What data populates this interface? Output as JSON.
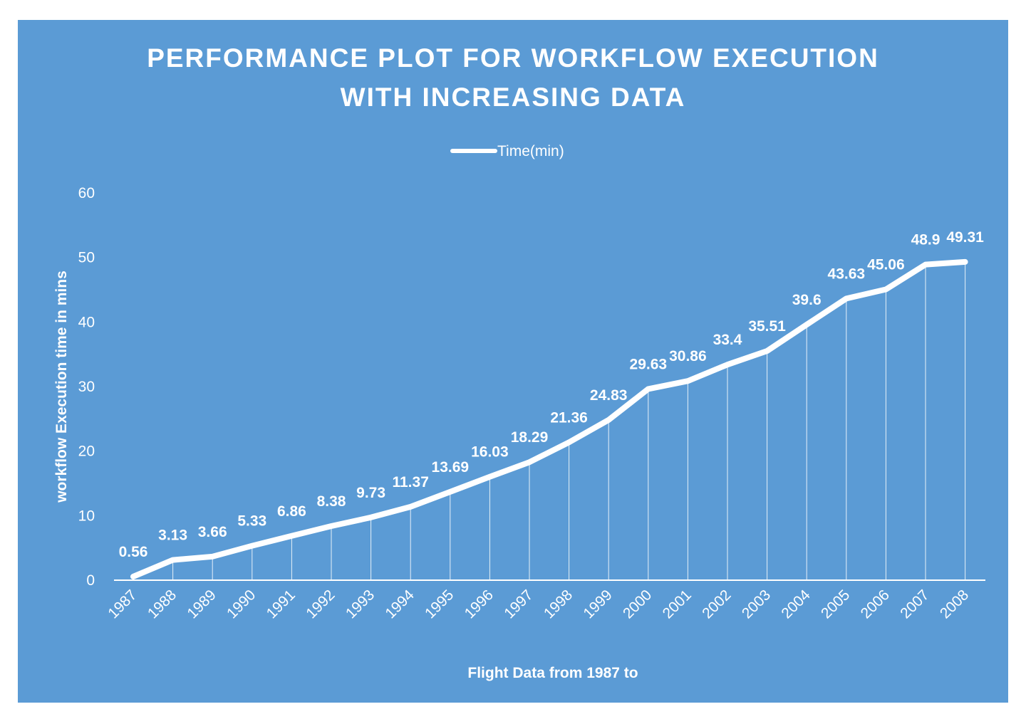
{
  "chart_data": {
    "type": "line",
    "title_lines": [
      "PERFORMANCE  PLOT FOR WORKFLOW  EXECUTION",
      "WITH INCREASING  DATA"
    ],
    "xlabel": "Flight Data from 1987 to",
    "ylabel": "workflow Execution time in mins",
    "ylim": [
      0,
      60
    ],
    "yticks": [
      "0",
      "10",
      "20",
      "30",
      "40",
      "50",
      "60"
    ],
    "legend_position": "top",
    "drop_lines": true,
    "grid": false,
    "colors": {
      "background": "#5b9bd5",
      "line": "#ffffff"
    },
    "categories": [
      "1987",
      "1988",
      "1989",
      "1990",
      "1991",
      "1992",
      "1993",
      "1994",
      "1995",
      "1996",
      "1997",
      "1998",
      "1999",
      "2000",
      "2001",
      "2002",
      "2003",
      "2004",
      "2005",
      "2006",
      "2007",
      "2008"
    ],
    "series": [
      {
        "name": "Time(min)",
        "values": [
          0.56,
          3.13,
          3.66,
          5.33,
          6.86,
          8.38,
          9.73,
          11.37,
          13.69,
          16.03,
          18.29,
          21.36,
          24.83,
          29.63,
          30.86,
          33.4,
          35.51,
          39.6,
          43.63,
          45.06,
          48.9,
          49.31
        ]
      }
    ],
    "data_labels": [
      "0.56",
      "3.13",
      "3.66",
      "5.33",
      "6.86",
      "8.38",
      "9.73",
      "11.37",
      "13.69",
      "16.03",
      "18.29",
      "21.36",
      "24.83",
      "29.63",
      "30.86",
      "33.4",
      "35.51",
      "39.6",
      "43.63",
      "45.06",
      "48.9",
      "49.31"
    ]
  }
}
